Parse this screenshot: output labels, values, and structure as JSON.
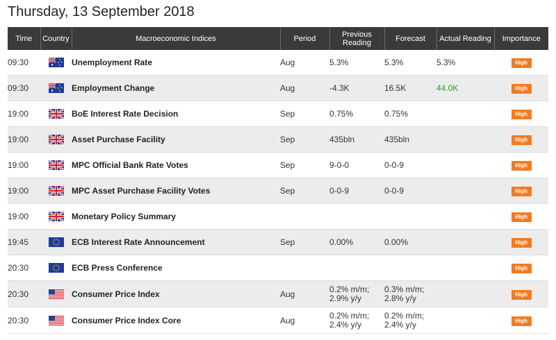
{
  "page": {
    "date_title": "Thursday, 13 September 2018"
  },
  "table": {
    "headers": {
      "time": "Time",
      "country": "Country",
      "indices": "Macroeconomic Indices",
      "period": "Period",
      "previous": "Previous Reading",
      "forecast": "Forecast",
      "actual": "Actual Reading",
      "importance": "Importance"
    },
    "rows": [
      {
        "time": "09:30",
        "country": "Australia",
        "country_icon": "australia-flag-icon",
        "name": "Unemployment Rate",
        "period": "Aug",
        "previous": [
          "5.3%"
        ],
        "forecast": [
          "5.3%"
        ],
        "actual": "5.3%",
        "actual_color": "#333333",
        "importance": "High"
      },
      {
        "time": "09:30",
        "country": "Australia",
        "country_icon": "australia-flag-icon",
        "name": "Employment Change",
        "period": "Aug",
        "previous": [
          "-4.3K"
        ],
        "forecast": [
          "16.5K"
        ],
        "actual": "44.0K",
        "actual_color": "#2a9d2a",
        "importance": "High"
      },
      {
        "time": "19:00",
        "country": "United Kingdom",
        "country_icon": "uk-flag-icon",
        "name": "BoE Interest Rate Decision",
        "period": "Sep",
        "previous": [
          "0.75%"
        ],
        "forecast": [
          "0.75%"
        ],
        "actual": "",
        "actual_color": "#333333",
        "importance": "High"
      },
      {
        "time": "19:00",
        "country": "United Kingdom",
        "country_icon": "uk-flag-icon",
        "name": "Asset Purchase Facility",
        "period": "Sep",
        "previous": [
          "435bln"
        ],
        "forecast": [
          "435bln"
        ],
        "actual": "",
        "actual_color": "#333333",
        "importance": "High"
      },
      {
        "time": "19:00",
        "country": "United Kingdom",
        "country_icon": "uk-flag-icon",
        "name": "MPC Official Bank Rate Votes",
        "period": "Sep",
        "previous": [
          "9-0-0"
        ],
        "forecast": [
          "0-0-9"
        ],
        "actual": "",
        "actual_color": "#333333",
        "importance": "High"
      },
      {
        "time": "19:00",
        "country": "United Kingdom",
        "country_icon": "uk-flag-icon",
        "name": "MPC Asset Purchase Facility Votes",
        "period": "Sep",
        "previous": [
          "0-0-9"
        ],
        "forecast": [
          "0-0-9"
        ],
        "actual": "",
        "actual_color": "#333333",
        "importance": "High"
      },
      {
        "time": "19:00",
        "country": "United Kingdom",
        "country_icon": "uk-flag-icon",
        "name": "Monetary Policy Summary",
        "period": "",
        "previous": [
          ""
        ],
        "forecast": [
          ""
        ],
        "actual": "",
        "actual_color": "#333333",
        "importance": "High"
      },
      {
        "time": "19:45",
        "country": "Euro Area",
        "country_icon": "eu-flag-icon",
        "name": "ECB Interest Rate Announcement",
        "period": "Sep",
        "previous": [
          "0.00%"
        ],
        "forecast": [
          "0.00%"
        ],
        "actual": "",
        "actual_color": "#333333",
        "importance": "High"
      },
      {
        "time": "20:30",
        "country": "Euro Area",
        "country_icon": "eu-flag-icon",
        "name": "ECB Press Conference",
        "period": "",
        "previous": [
          ""
        ],
        "forecast": [
          ""
        ],
        "actual": "",
        "actual_color": "#333333",
        "importance": "High"
      },
      {
        "time": "20:30",
        "country": "United States",
        "country_icon": "us-flag-icon",
        "name": "Consumer Price Index",
        "period": "Aug",
        "previous": [
          "0.2% m/m;",
          "2.9% y/y"
        ],
        "forecast": [
          "0.3% m/m;",
          "2.8% y/y"
        ],
        "actual": "",
        "actual_color": "#333333",
        "importance": "High"
      },
      {
        "time": "20:30",
        "country": "United States",
        "country_icon": "us-flag-icon",
        "name": "Consumer Price Index Core",
        "period": "Aug",
        "previous": [
          "0.2% m/m;",
          "2.4% y/y"
        ],
        "forecast": [
          "0.2% m/m;",
          "2.4% y/y"
        ],
        "actual": "",
        "actual_color": "#333333",
        "importance": "High"
      }
    ]
  },
  "colors": {
    "header_bg": "#3a3a3a",
    "row_alt_bg": "#ececec",
    "high_badge": "#f47a20",
    "actual_positive": "#2a9d2a"
  }
}
